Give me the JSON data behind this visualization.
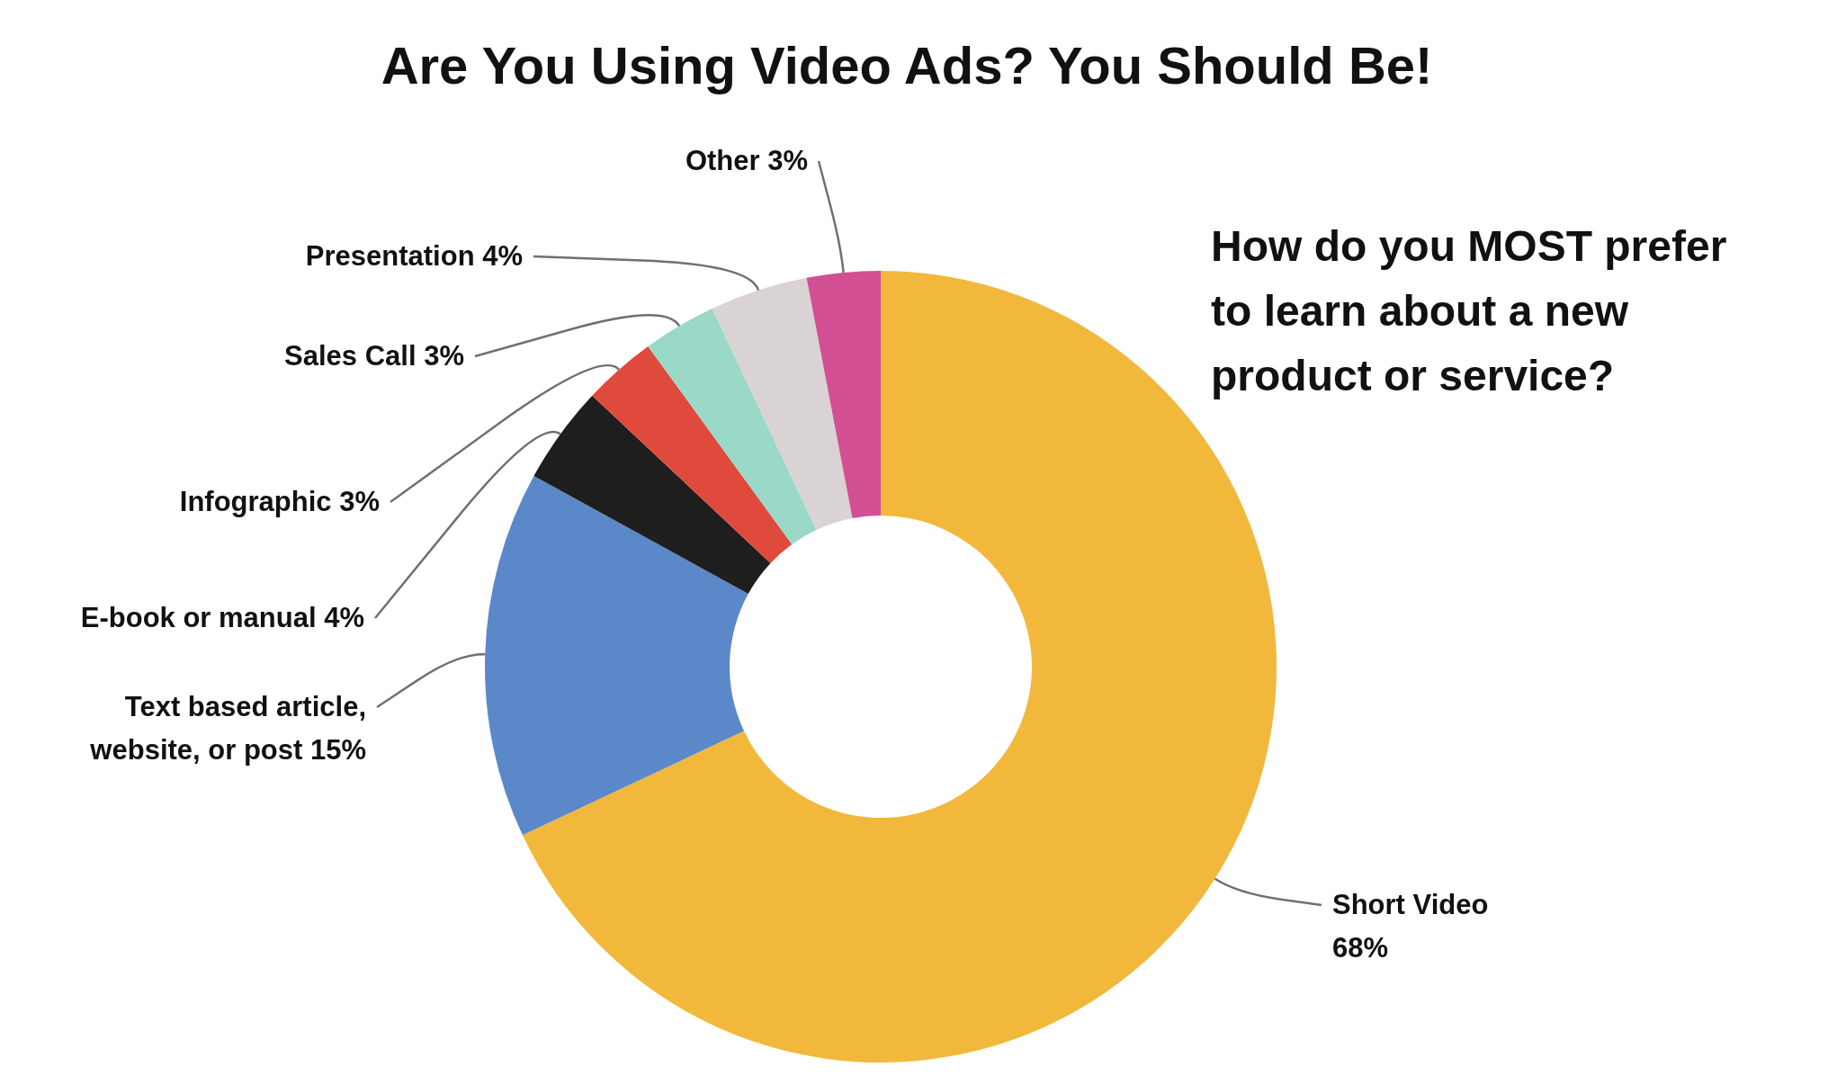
{
  "chart_data": {
    "type": "donut",
    "title": "Are You Using Video Ads?  You Should Be!",
    "subtitle": "How do you MOST prefer to learn about a new product or service?",
    "categories": [
      "Short Video",
      "Text based article, website, or post",
      "E-book or manual",
      "Infographic",
      "Sales Call",
      "Presentation",
      "Other"
    ],
    "values": [
      68,
      15,
      4,
      3,
      3,
      4,
      3
    ],
    "value_labels": [
      "68%",
      "15%",
      "4%",
      "3%",
      "3%",
      "4%",
      "3%"
    ],
    "colors": [
      "#f2b83c",
      "#5b88c8",
      "#1e1e1e",
      "#e04a3c",
      "#9ad8c8",
      "#d9d3d3",
      "#d24f94"
    ]
  }
}
